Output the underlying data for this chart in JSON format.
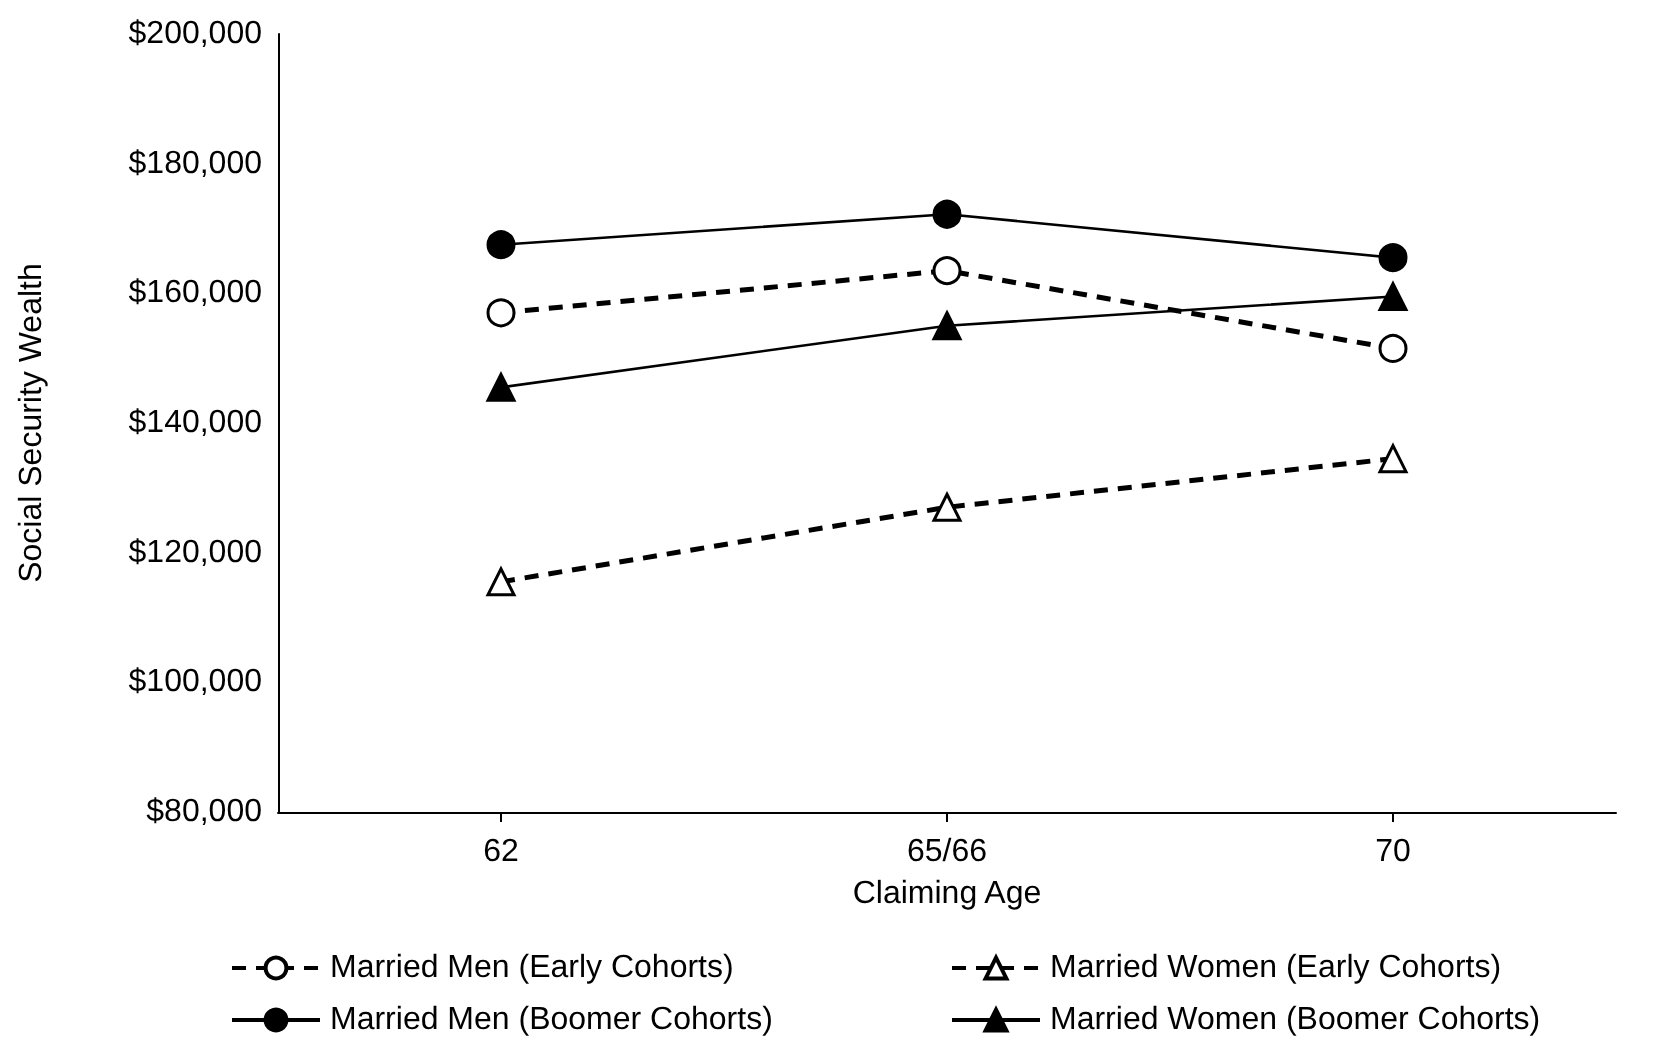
{
  "chart_data": {
    "type": "line",
    "xlabel": "Claiming Age",
    "ylabel": "Social Security Wealth",
    "categories": [
      "62",
      "65/66",
      "70"
    ],
    "ylim": [
      80000,
      200000
    ],
    "yticks": [
      {
        "value": 80000,
        "label": "$80,000"
      },
      {
        "value": 100000,
        "label": "$100,000"
      },
      {
        "value": 120000,
        "label": "$120,000"
      },
      {
        "value": 140000,
        "label": "$140,000"
      },
      {
        "value": 160000,
        "label": "$160,000"
      },
      {
        "value": 180000,
        "label": "$180,000"
      },
      {
        "value": 200000,
        "label": "$200,000"
      }
    ],
    "grid": false,
    "legend": "bottom",
    "series": [
      {
        "name": "Married Men (Early Cohorts)",
        "color": "#000000",
        "marker": "circle",
        "line_style": "dashed",
        "values": [
          157000,
          163500,
          151500
        ]
      },
      {
        "name": "Married Women (Early Cohorts)",
        "color": "#000000",
        "marker": "triangle",
        "line_style": "dashed",
        "values": [
          115500,
          127000,
          134500
        ]
      },
      {
        "name": "Married Men (Boomer Cohorts)",
        "color": "#000000",
        "marker": "circle",
        "line_style": "solid",
        "values": [
          167500,
          172200,
          165500
        ]
      },
      {
        "name": "Married Women (Boomer Cohorts)",
        "color": "#000000",
        "marker": "triangle",
        "line_style": "solid",
        "values": [
          145500,
          155000,
          159500
        ]
      }
    ]
  }
}
